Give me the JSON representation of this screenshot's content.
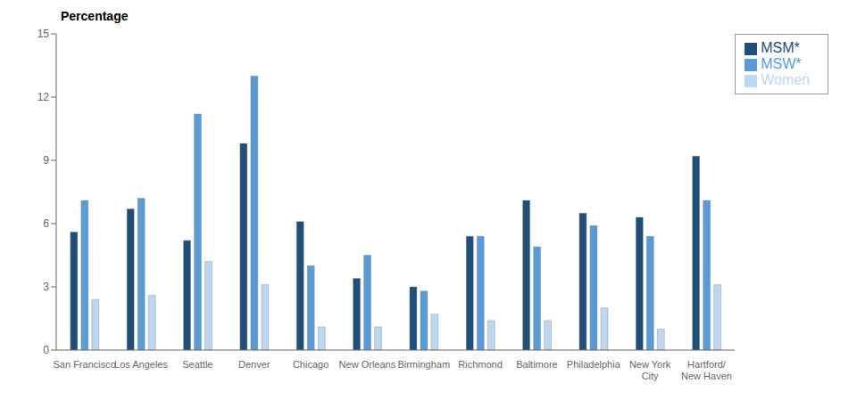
{
  "chart_data": {
    "type": "bar",
    "ylabel": "Percentage",
    "categories": [
      "San Francisco",
      "Los Angeles",
      "Seattle",
      "Denver",
      "Chicago",
      "New Orleans",
      "Birmingham",
      "Richmond",
      "Baltimore",
      "Philadelphia",
      "New York\nCity",
      "Hartford/\nNew Haven"
    ],
    "series": [
      {
        "name": "MSM*",
        "color": "#1f4e79",
        "values": [
          5.6,
          6.7,
          5.2,
          9.8,
          6.1,
          3.4,
          3.0,
          5.4,
          7.1,
          6.5,
          6.3,
          9.2
        ]
      },
      {
        "name": "MSW*",
        "color": "#5b9bd5",
        "values": [
          7.1,
          7.2,
          11.2,
          13.0,
          4.0,
          4.5,
          2.8,
          5.4,
          4.9,
          5.9,
          5.4,
          7.1
        ]
      },
      {
        "name": "Women",
        "color": "#bdd7ee",
        "values": [
          2.4,
          2.6,
          4.2,
          3.1,
          1.1,
          1.1,
          1.7,
          1.4,
          1.4,
          2.0,
          1.0,
          3.1
        ]
      }
    ],
    "ylim": [
      0,
      15
    ],
    "yticks": [
      0,
      3,
      6,
      9,
      12,
      15
    ],
    "grid": false,
    "legend": "upper right"
  }
}
